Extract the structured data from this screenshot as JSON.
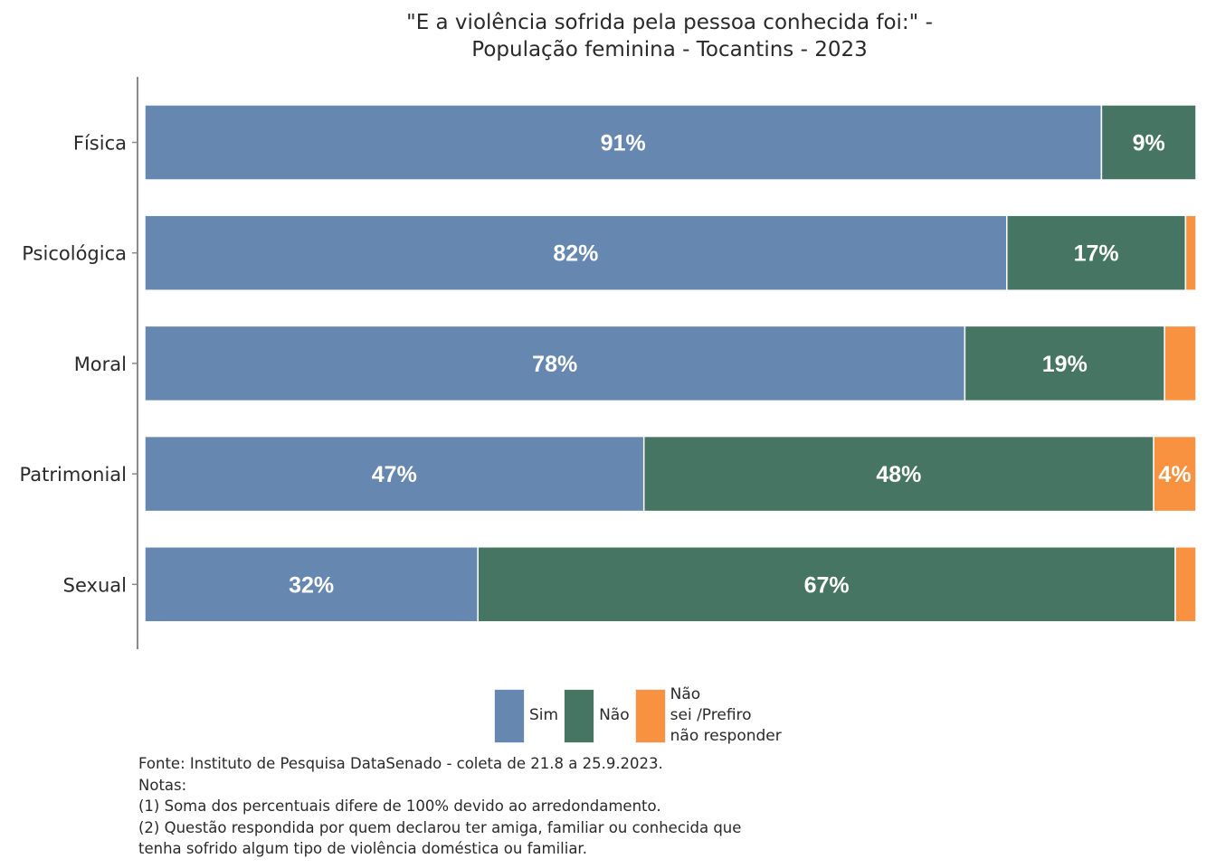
{
  "chart_data": {
    "type": "bar",
    "orientation": "horizontal",
    "stacked": true,
    "normalized": true,
    "title": "\"E a violência sofrida pela pessoa conhecida foi:\" -\nPopulação feminina - Tocantins - 2023",
    "title_lines": [
      "\"E a violência sofrida pela pessoa conhecida foi:\" -",
      "População feminina - Tocantins - 2023"
    ],
    "xlabel": "",
    "ylabel": "",
    "categories": [
      "Física",
      "Psicológica",
      "Moral",
      "Patrimonial",
      "Sexual"
    ],
    "series": [
      {
        "name": "Sim",
        "color": "#6688b0",
        "values": [
          91,
          82,
          78,
          47,
          32
        ],
        "labels": [
          "91%",
          "82%",
          "78%",
          "47%",
          "32%"
        ]
      },
      {
        "name": "Não",
        "color": "#467563",
        "values": [
          9,
          17,
          19,
          48,
          67
        ],
        "labels": [
          "9%",
          "17%",
          "19%",
          "48%",
          "67%"
        ]
      },
      {
        "name": "Não sei /Prefiro não responder",
        "color": "#f99240",
        "values": [
          0,
          1,
          3,
          4,
          2
        ],
        "labels": [
          "",
          "",
          "",
          "4%",
          ""
        ]
      }
    ],
    "xlim": [
      0,
      100
    ],
    "grid": false,
    "legend_position": "bottom"
  },
  "legend": {
    "items": [
      {
        "label_lines": [
          "Sim"
        ],
        "color": "#6688b0"
      },
      {
        "label_lines": [
          "Não"
        ],
        "color": "#467563"
      },
      {
        "label_lines": [
          "Não",
          "sei /Prefiro",
          "não responder"
        ],
        "color": "#f99240"
      }
    ]
  },
  "footer": {
    "source": "Fonte: Instituto de Pesquisa DataSenado - coleta de 21.8 a 25.9.2023.",
    "notes_heading": "Notas:",
    "note1": "(1) Soma dos percentuais difere de 100% devido ao arredondamento.",
    "note2_line1": "(2) Questão respondida por quem declarou ter amiga, familiar ou conhecida que",
    "note2_line2": "tenha sofrido algum tipo de violência doméstica ou familiar."
  }
}
